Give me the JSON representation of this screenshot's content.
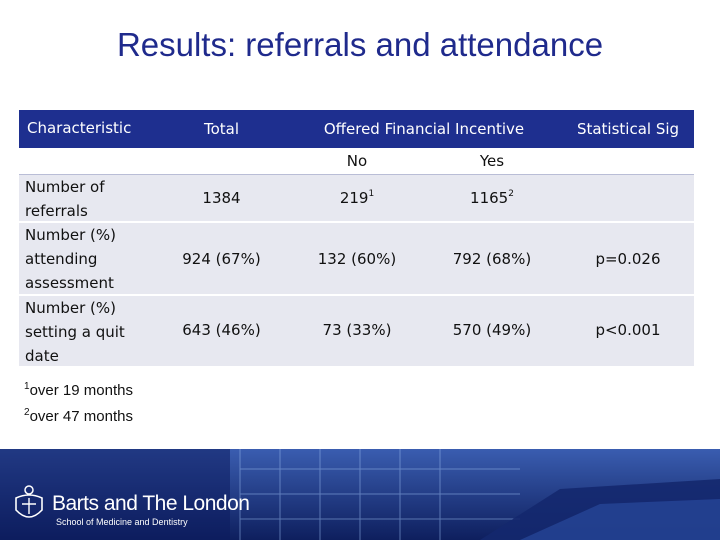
{
  "title": "Results: referrals and attendance",
  "table": {
    "header": {
      "characteristic": "Characteristic",
      "total": "Total",
      "offered": "Offered Financial Incentive",
      "sig": "Statistical Sig",
      "no": "No",
      "yes": "Yes"
    },
    "rows": [
      {
        "label_lines": [
          "Number of",
          "referrals"
        ],
        "total": "1384",
        "no": "219",
        "no_sup": "1",
        "yes": "1165",
        "yes_sup": "2",
        "sig": ""
      },
      {
        "label_lines": [
          "Number (%)",
          "attending",
          "assessment"
        ],
        "total": "924 (67%)",
        "no": "132 (60%)",
        "yes": "792 (68%)",
        "sig": "p=0.026"
      },
      {
        "label_lines": [
          "Number (%)",
          "setting a quit",
          "date"
        ],
        "total": "643 (46%)",
        "no": "73 (33%)",
        "yes": "570 (49%)",
        "sig": "p<0.001"
      }
    ]
  },
  "footnotes": [
    {
      "sup": "1",
      "text": "over 19 months"
    },
    {
      "sup": "2",
      "text": "over 47 months"
    }
  ],
  "banner": {
    "name": "Barts and The London",
    "subtitle": "School of Medicine and Dentistry"
  }
}
